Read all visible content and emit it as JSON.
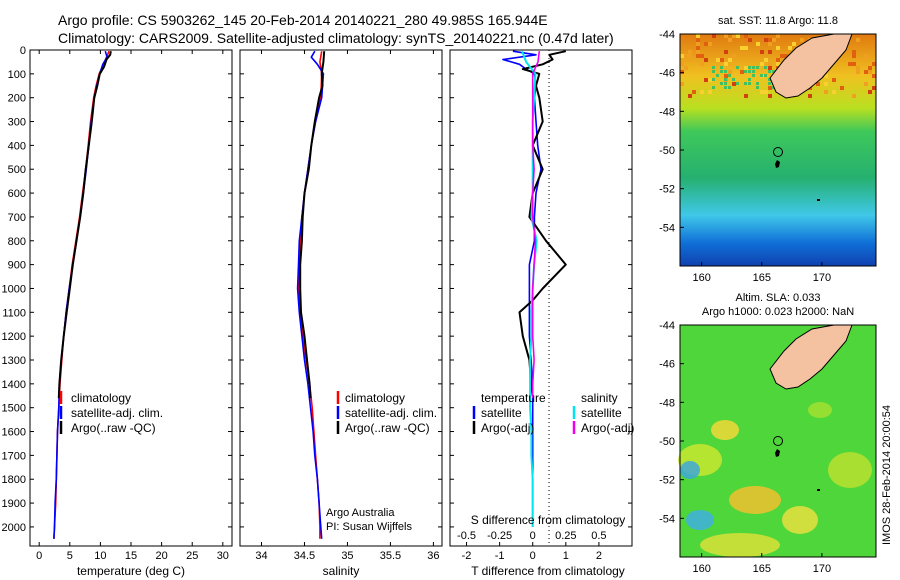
{
  "header": {
    "line1": "Argo profile: CS 5903262_145 20-Feb-2014 20140221_280 49.985S 165.944E",
    "line2": "Climatology: CARS2009. Satellite-adjusted climatology: synTS_20140221.nc (0.47d later)"
  },
  "colors": {
    "climatology": "#ff0000",
    "satellite": "#0000ff",
    "argo": "#000000",
    "salinity_satellite": "#00e5ee",
    "salinity_argo": "#ee00ee"
  },
  "chart_data": [
    {
      "id": "temperature",
      "type": "line",
      "xlabel": "temperature (deg C)",
      "xlim": [
        -1.5,
        31.5
      ],
      "xticks": [
        "0",
        "5",
        "10",
        "15",
        "20",
        "25",
        "30"
      ],
      "ylim": [
        0,
        2080
      ],
      "yticks": [
        "0",
        "100",
        "200",
        "300",
        "400",
        "500",
        "600",
        "700",
        "800",
        "900",
        "1000",
        "1100",
        "1200",
        "1300",
        "1400",
        "1500",
        "1600",
        "1700",
        "1800",
        "1900",
        "2000"
      ],
      "legend": [
        "climatology",
        "satellite-adj. clim.",
        "Argo(..raw -QC)"
      ],
      "series": [
        {
          "name": "climatology",
          "depth": [
            5,
            30,
            60,
            100,
            150,
            200,
            300,
            400,
            500,
            600,
            700,
            800,
            900,
            1000,
            1100,
            1200,
            1300,
            1400,
            1500,
            1600,
            1700,
            1800,
            1900,
            2000,
            2050
          ],
          "values": [
            11.4,
            11.0,
            10.5,
            9.8,
            9.3,
            8.9,
            8.4,
            8.0,
            7.6,
            7.1,
            6.6,
            6.0,
            5.4,
            4.9,
            4.4,
            4.0,
            3.7,
            3.4,
            3.2,
            3.0,
            2.9,
            2.8,
            2.7,
            2.5,
            2.4
          ]
        },
        {
          "name": "satellite-adj. clim.",
          "depth": [
            5,
            30,
            60,
            100,
            150,
            200,
            300,
            400,
            500,
            600,
            700,
            800,
            900,
            1000,
            1100,
            1200,
            1300,
            1400,
            1500,
            1600,
            1700,
            1800,
            1900,
            2000,
            2050
          ],
          "values": [
            10.8,
            11.1,
            10.4,
            9.9,
            9.4,
            9.0,
            8.5,
            8.1,
            7.7,
            7.2,
            6.7,
            6.1,
            5.5,
            4.9,
            4.4,
            4.0,
            3.6,
            3.3,
            3.2,
            3.0,
            2.9,
            2.8,
            2.6,
            2.5,
            2.4
          ]
        },
        {
          "name": "Argo(..raw -QC)",
          "depth": [
            5,
            20,
            40,
            70,
            100,
            150,
            200,
            300,
            400,
            500,
            600,
            700,
            800,
            900,
            1000,
            1100,
            1200,
            1300,
            1400,
            1460
          ],
          "values": [
            11.7,
            11.6,
            11.0,
            10.6,
            9.9,
            9.5,
            9.0,
            8.6,
            8.1,
            7.6,
            7.2,
            6.7,
            6.1,
            5.5,
            5.0,
            4.5,
            4.0,
            3.6,
            3.3,
            3.2
          ]
        }
      ]
    },
    {
      "id": "salinity",
      "type": "line",
      "xlabel": "salinity",
      "xlim": [
        33.75,
        36.1
      ],
      "xticks": [
        "34",
        "34.5",
        "35",
        "35.5",
        "36"
      ],
      "ylim": [
        0,
        2080
      ],
      "legend": [
        "climatology",
        "satellite-adj. clim.",
        "Argo(..raw -QC)"
      ],
      "annotation": [
        "Argo Australia",
        "PI: Susan Wijffels"
      ],
      "series": [
        {
          "name": "climatology",
          "depth": [
            5,
            50,
            100,
            200,
            300,
            400,
            500,
            600,
            700,
            800,
            900,
            1000,
            1100,
            1200,
            1300,
            1400,
            1500,
            1600,
            1700,
            1800,
            1900,
            2000,
            2050
          ],
          "values": [
            34.7,
            34.68,
            34.7,
            34.69,
            34.63,
            34.58,
            34.54,
            34.5,
            34.47,
            34.45,
            34.44,
            34.43,
            34.45,
            34.48,
            34.52,
            34.56,
            34.59,
            34.61,
            34.63,
            34.65,
            34.67,
            34.68,
            34.68
          ]
        },
        {
          "name": "satellite-adj. clim.",
          "depth": [
            5,
            30,
            60,
            100,
            200,
            300,
            400,
            500,
            600,
            700,
            800,
            900,
            1000,
            1100,
            1200,
            1300,
            1400,
            1500,
            1600,
            1700,
            1800,
            1900,
            2000,
            2050
          ],
          "values": [
            34.62,
            34.58,
            34.65,
            34.72,
            34.7,
            34.63,
            34.58,
            34.54,
            34.5,
            34.47,
            34.44,
            34.43,
            34.42,
            34.44,
            34.47,
            34.5,
            34.54,
            34.57,
            34.6,
            34.62,
            34.65,
            34.67,
            34.69,
            34.7
          ]
        },
        {
          "name": "Argo(..raw -QC)",
          "depth": [
            5,
            50,
            100,
            150,
            200,
            300,
            400,
            500,
            600,
            700,
            800,
            900,
            1000,
            1100,
            1200,
            1300,
            1400,
            1460
          ],
          "values": [
            34.73,
            34.72,
            34.7,
            34.71,
            34.67,
            34.62,
            34.58,
            34.55,
            34.5,
            34.48,
            34.47,
            34.45,
            34.45,
            34.46,
            34.5,
            34.53,
            34.56,
            34.57
          ]
        }
      ]
    },
    {
      "id": "difference",
      "type": "line",
      "xlabel": "T difference from climatology",
      "xlabel_top": "S difference from climatology",
      "xlim": [
        -2.5,
        3.0
      ],
      "xticks": [
        "-2",
        "-1",
        "0",
        "1",
        "2"
      ],
      "xticks_top": [
        "-0.5",
        "-0.25",
        "0",
        "0.25",
        "0.5"
      ],
      "legend_temperature": {
        "title": "temperature",
        "items": [
          "satellite",
          "Argo(-adj)"
        ]
      },
      "legend_salinity": {
        "title": "salinity",
        "items": [
          "satellite",
          "Argo(-adj)"
        ]
      },
      "series": [
        {
          "name": "temperature satellite",
          "depth": [
            5,
            20,
            40,
            60,
            80,
            100,
            150,
            200,
            300,
            400,
            500,
            600,
            700,
            800,
            900,
            1000,
            1100,
            1200,
            1300,
            1400,
            1500,
            1600,
            1700,
            1800,
            2000
          ],
          "values": [
            -0.6,
            0.1,
            -0.9,
            -0.4,
            -0.2,
            0.05,
            0.1,
            0.05,
            0.1,
            0.15,
            0.25,
            0.1,
            0.05,
            0.05,
            -0.1,
            -0.1,
            -0.1,
            -0.1,
            -0.05,
            0.0,
            0.0,
            0.0,
            0.0,
            0.0,
            0.0
          ]
        },
        {
          "name": "temperature Argo(-adj)",
          "depth": [
            5,
            20,
            40,
            60,
            80,
            100,
            150,
            200,
            300,
            400,
            500,
            600,
            700,
            800,
            900,
            1000,
            1050,
            1100,
            1200,
            1300,
            1400,
            1450
          ],
          "values": [
            1.0,
            0.5,
            0.6,
            0.3,
            -0.3,
            0.2,
            0.1,
            0.2,
            0.3,
            0.0,
            0.3,
            0.0,
            -0.1,
            0.4,
            1.0,
            0.3,
            0.0,
            -0.4,
            -0.3,
            -0.1,
            -0.05,
            0.0
          ]
        },
        {
          "name": "salinity satellite",
          "depth": [
            5,
            50,
            100,
            200,
            300,
            400,
            500,
            600,
            700,
            800,
            900,
            1000,
            1100,
            1200,
            1300,
            1400,
            1500,
            1600,
            1700,
            1800,
            2000
          ],
          "values": [
            -0.08,
            -0.05,
            0.02,
            0.01,
            0.0,
            0.0,
            0.0,
            0.0,
            -0.01,
            0.03,
            0.01,
            0.0,
            -0.01,
            -0.01,
            -0.02,
            -0.02,
            -0.02,
            -0.01,
            -0.01,
            0.0,
            0.0
          ]
        },
        {
          "name": "salinity Argo(-adj)",
          "depth": [
            5,
            50,
            100,
            200,
            300,
            400,
            500,
            600,
            700,
            800,
            900,
            1000,
            1100,
            1200,
            1300,
            1400,
            1460
          ],
          "values": [
            0.05,
            0.04,
            0.0,
            0.0,
            0.0,
            0.0,
            0.01,
            0.0,
            0.0,
            0.02,
            0.01,
            0.0,
            0.0,
            0.0,
            0.01,
            0.0,
            0.0
          ]
        }
      ]
    }
  ],
  "map_sst": {
    "title": "sat. SST: 11.8 Argo: 11.8",
    "yticks": [
      "-44",
      "-46",
      "-48",
      "-50",
      "-52",
      "-54"
    ],
    "xticks": [
      "160",
      "165",
      "170"
    ],
    "xlim": [
      158.2,
      174.5
    ],
    "ylim": [
      -56,
      -44
    ]
  },
  "map_sla": {
    "title1": "Altim. SLA: 0.033",
    "title2": "Argo h1000: 0.023 h2000: NaN",
    "yticks": [
      "-44",
      "-46",
      "-48",
      "-50",
      "-52",
      "-54"
    ],
    "xticks": [
      "160",
      "165",
      "170"
    ],
    "xlim": [
      158.2,
      174.5
    ],
    "ylim": [
      -56,
      -44
    ]
  },
  "float_position": {
    "lon": 165.944,
    "lat": -49.985
  },
  "footer_stamp": "IMOS 28-Feb-2014 20:00:54"
}
